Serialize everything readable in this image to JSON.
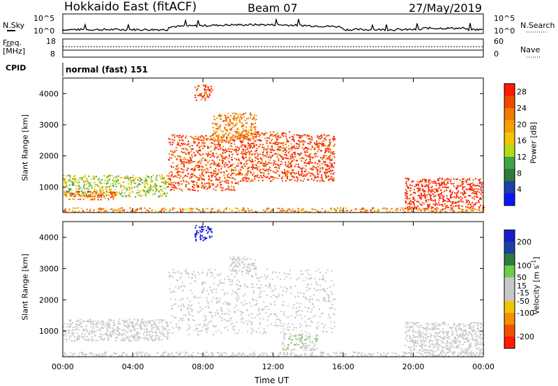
{
  "header": {
    "site": "Hokkaido East (fitACF)",
    "beam": "Beam 07",
    "date": "27/May/2019"
  },
  "noise_panel": {
    "left_label": "N.Sky",
    "right_label": "N.Search",
    "left_ticks": [
      "10^5",
      "10^0"
    ],
    "right_ticks": [
      "10^5",
      "10^0"
    ]
  },
  "freq_panel": {
    "left_label_1": "Freq.",
    "left_label_2": "[MHz]",
    "left_ticks": [
      "18",
      "8"
    ],
    "right_label": "Nave",
    "right_ticks": [
      "60",
      "0"
    ]
  },
  "cpid": {
    "label": "CPID",
    "program": "normal (fast) 151"
  },
  "colors": {
    "power_scale": [
      "#0a14ff",
      "#1f3fa8",
      "#2f7a3c",
      "#3aa648",
      "#b8d818",
      "#f5c600",
      "#f5a000",
      "#f07a00",
      "#f04a00",
      "#ff1a00"
    ],
    "velocity_scale": [
      "#1a1ad0",
      "#1f3fa8",
      "#2f7a3c",
      "#6cd04a",
      "#c8c8c8",
      "#c8c8c8",
      "#f5c600",
      "#f59000",
      "#f05000",
      "#ff1a00"
    ]
  },
  "chart_data": [
    {
      "type": "heatmap",
      "title": "",
      "xlabel": "",
      "ylabel": "Slant Range [km]",
      "x_ticks": [
        "00:00",
        "04:00",
        "08:00",
        "12:00",
        "16:00",
        "20:00",
        "00:00"
      ],
      "y_ticks": [
        1000,
        2000,
        3000,
        4000
      ],
      "xlim_hours": [
        0,
        24
      ],
      "ylim_km": [
        180,
        4500
      ],
      "colorbar": {
        "label": "Power [dB]",
        "ticks": [
          4,
          8,
          12,
          16,
          20,
          24,
          28
        ],
        "range": [
          0,
          30
        ]
      },
      "regions": [
        {
          "x": [
            0.0,
            6.0
          ],
          "y": [
            700,
            1400
          ],
          "value": 14
        },
        {
          "x": [
            0.0,
            3.0
          ],
          "y": [
            600,
            900
          ],
          "value": 24
        },
        {
          "x": [
            6.0,
            10.0
          ],
          "y": [
            900,
            2700
          ],
          "value": 26
        },
        {
          "x": [
            10.0,
            13.0
          ],
          "y": [
            1200,
            2800
          ],
          "value": 26
        },
        {
          "x": [
            13.0,
            15.5
          ],
          "y": [
            1200,
            2700
          ],
          "value": 27
        },
        {
          "x": [
            8.5,
            11.0
          ],
          "y": [
            2500,
            3400
          ],
          "value": 22
        },
        {
          "x": [
            7.5,
            8.5
          ],
          "y": [
            3800,
            4300
          ],
          "value": 26
        },
        {
          "x": [
            19.5,
            24.0
          ],
          "y": [
            300,
            1300
          ],
          "value": 29
        },
        {
          "x": [
            0.0,
            24.0
          ],
          "y": [
            200,
            350
          ],
          "value": 22
        }
      ]
    },
    {
      "type": "heatmap",
      "title": "",
      "xlabel": "Time UT",
      "ylabel": "Slant Range [km]",
      "x_ticks": [
        "00:00",
        "04:00",
        "08:00",
        "12:00",
        "16:00",
        "20:00",
        "00:00"
      ],
      "y_ticks": [
        1000,
        2000,
        3000,
        4000
      ],
      "xlim_hours": [
        0,
        24
      ],
      "ylim_km": [
        180,
        4500
      ],
      "colorbar": {
        "label": "Velocity [m s^-1]",
        "ticks": [
          200,
          100,
          50,
          15,
          -15,
          -50,
          -100,
          -200
        ],
        "range": [
          -250,
          250
        ]
      },
      "regions": [
        {
          "x": [
            0.0,
            6.0
          ],
          "y": [
            700,
            1400
          ],
          "value": 0
        },
        {
          "x": [
            6.0,
            15.5
          ],
          "y": [
            900,
            3000
          ],
          "value": 0
        },
        {
          "x": [
            9.5,
            11.0
          ],
          "y": [
            2900,
            3400
          ],
          "value": -30
        },
        {
          "x": [
            7.5,
            8.5
          ],
          "y": [
            3900,
            4400
          ],
          "value": 220
        },
        {
          "x": [
            12.5,
            14.5
          ],
          "y": [
            400,
            900
          ],
          "value": 40
        },
        {
          "x": [
            19.5,
            24.0
          ],
          "y": [
            300,
            1300
          ],
          "value": 0
        },
        {
          "x": [
            0.0,
            24.0
          ],
          "y": [
            200,
            350
          ],
          "value": -30
        }
      ]
    }
  ]
}
